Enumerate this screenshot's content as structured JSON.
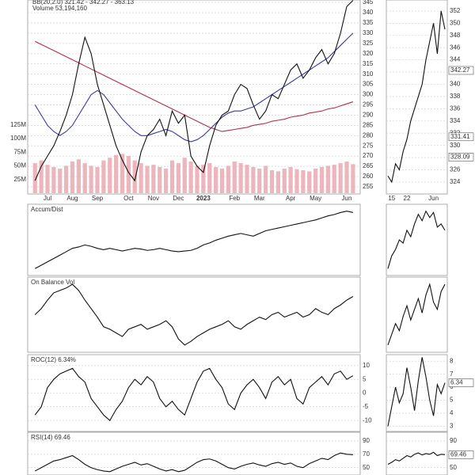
{
  "chart_data": [
    {
      "type": "line",
      "legend": [
        "BB(20,2.0) 321.42 - 342.27 - 363.13",
        "Volume 53,194,160"
      ],
      "categories": [
        null,
        null,
        "Jul",
        null,
        null,
        null,
        "Aug",
        null,
        null,
        null,
        "Sep",
        null,
        null,
        null,
        null,
        "Oct",
        null,
        null,
        null,
        "Nov",
        null,
        null,
        null,
        "Dec",
        null,
        null,
        null,
        "2023",
        null,
        null,
        null,
        null,
        "Feb",
        null,
        null,
        null,
        "Mar",
        null,
        null,
        null,
        null,
        "Apr",
        null,
        null,
        null,
        "May",
        null,
        null,
        null,
        null,
        "Jun",
        null
      ],
      "ylim": [
        251.5,
        346.2
      ],
      "yticks": [
        255,
        260,
        265,
        270,
        275,
        280,
        285,
        290,
        295,
        300,
        305,
        310,
        315,
        320,
        325,
        330,
        335,
        340,
        345
      ],
      "y2lim": [
        0,
        354000000
      ],
      "y2ticks": [
        {
          "value": 25000000,
          "label": "25M"
        },
        {
          "value": 50000000,
          "label": "50M"
        },
        {
          "value": 75000000,
          "label": "75M"
        },
        {
          "value": 100000000,
          "label": "100M"
        },
        {
          "value": 125000000,
          "label": "125M"
        }
      ],
      "series": [
        {
          "color": "#e8a3ab",
          "axis": "y2",
          "values": [
            55000000,
            60000000,
            52000000,
            48000000,
            45000000,
            50000000,
            58000000,
            62000000,
            55000000,
            50000000,
            48000000,
            60000000,
            65000000,
            70000000,
            72000000,
            68000000,
            60000000,
            55000000,
            50000000,
            52000000,
            48000000,
            45000000,
            60000000,
            55000000,
            65000000,
            58000000,
            50000000,
            52000000,
            55000000,
            48000000,
            45000000,
            50000000,
            58000000,
            55000000,
            52000000,
            48000000,
            45000000,
            50000000,
            42000000,
            40000000,
            45000000,
            48000000,
            44000000,
            42000000,
            40000000,
            45000000,
            48000000,
            50000000,
            52000000,
            55000000,
            58000000,
            53194160
          ]
        },
        {
          "color": "#b03048",
          "values": [
            326,
            324.5,
            323,
            321.5,
            320,
            318.5,
            317,
            315.5,
            314,
            312.5,
            311,
            309.5,
            308,
            306.5,
            305,
            303.5,
            302,
            300.5,
            299,
            297.5,
            296,
            294.5,
            293,
            291.5,
            290,
            288.5,
            287,
            285.5,
            284,
            283,
            282,
            282.5,
            283,
            283.5,
            284,
            285,
            285.5,
            286,
            287,
            287.5,
            288,
            289,
            289.5,
            290,
            291,
            291.5,
            292,
            293,
            293.5,
            294.5,
            295.5,
            296.5
          ]
        },
        {
          "color": "#3a3aa0",
          "values": [
            295,
            290,
            285,
            282,
            280,
            282,
            285,
            290,
            295,
            300,
            302,
            300,
            296,
            292,
            288,
            285,
            282,
            280,
            280,
            281,
            282,
            283,
            282,
            280,
            278,
            277,
            278,
            280,
            283,
            286,
            289,
            291,
            292,
            292,
            293,
            294,
            296,
            298,
            300,
            302,
            304,
            306,
            308,
            310,
            312,
            314,
            316,
            318,
            321,
            324,
            327,
            330
          ]
        },
        {
          "color": "#111111",
          "values": [
            258,
            265,
            270,
            275,
            282,
            290,
            300,
            315,
            328,
            320,
            305,
            295,
            285,
            275,
            268,
            262,
            258,
            272,
            280,
            283,
            288,
            280,
            292,
            286,
            290,
            270,
            265,
            262,
            275,
            285,
            290,
            292,
            300,
            305,
            303,
            295,
            288,
            292,
            300,
            298,
            305,
            312,
            315,
            308,
            312,
            318,
            322,
            315,
            320,
            330,
            343,
            346
          ]
        }
      ]
    },
    {
      "type": "line",
      "title": "Accum/Dist",
      "series": [
        {
          "color": "#111111",
          "values": [
            10,
            15,
            20,
            25,
            30,
            35,
            40,
            42,
            45,
            43,
            40,
            38,
            40,
            38,
            36,
            38,
            40,
            39,
            37,
            38,
            40,
            38,
            36,
            35,
            36,
            37,
            40,
            45,
            48,
            52,
            55,
            58,
            60,
            62,
            60,
            58,
            62,
            66,
            68,
            70,
            72,
            74,
            76,
            78,
            80,
            82,
            85,
            88,
            90,
            93,
            95,
            93
          ]
        }
      ]
    },
    {
      "type": "line",
      "title": "On Balance Vol",
      "series": [
        {
          "color": "#111111",
          "values": [
            50,
            55,
            62,
            68,
            70,
            72,
            75,
            70,
            62,
            55,
            48,
            40,
            38,
            35,
            32,
            38,
            40,
            42,
            38,
            40,
            42,
            45,
            40,
            30,
            25,
            28,
            32,
            35,
            38,
            40,
            42,
            45,
            40,
            38,
            42,
            45,
            48,
            46,
            50,
            52,
            48,
            50,
            52,
            48,
            50,
            55,
            52,
            50,
            55,
            58,
            62,
            65
          ]
        }
      ]
    },
    {
      "type": "line",
      "title": "ROC(12) 6.34%",
      "ylim": [
        -14,
        14
      ],
      "yticks": [
        -10,
        -5,
        0,
        5,
        10
      ],
      "series": [
        {
          "color": "#111111",
          "values": [
            -8,
            -5,
            2,
            5,
            7,
            8,
            9,
            6,
            4,
            -2,
            -5,
            -8,
            -10,
            -6,
            -3,
            2,
            5,
            3,
            6,
            4,
            -2,
            -5,
            -3,
            -6,
            -8,
            -2,
            4,
            8,
            9,
            5,
            2,
            -4,
            -6,
            0,
            3,
            5,
            2,
            -2,
            4,
            6,
            3,
            5,
            -2,
            -4,
            2,
            4,
            6,
            3,
            7,
            8,
            5,
            6.34
          ]
        }
      ]
    },
    {
      "type": "line",
      "title": "RSI(14) 69.46",
      "ylim": [
        39,
        103
      ],
      "yticks": [
        50,
        70,
        90
      ],
      "series": [
        {
          "color": "#111111",
          "values": [
            45,
            50,
            55,
            60,
            62,
            65,
            68,
            62,
            55,
            50,
            47,
            45,
            44,
            48,
            52,
            55,
            58,
            54,
            56,
            52,
            48,
            45,
            47,
            44,
            46,
            52,
            58,
            62,
            63,
            60,
            55,
            50,
            48,
            52,
            55,
            57,
            54,
            52,
            56,
            58,
            55,
            57,
            52,
            50,
            56,
            60,
            64,
            62,
            68,
            72,
            70,
            69.46
          ]
        }
      ]
    },
    {
      "type": "line",
      "categories": [
        null,
        "15",
        null,
        null,
        null,
        "22",
        null,
        null,
        null,
        null,
        null,
        null,
        "Jun",
        null,
        null,
        null
      ],
      "ylim": [
        322.05,
        353.8
      ],
      "yticks": [
        324,
        326,
        328,
        330,
        332,
        334,
        336,
        338,
        340,
        342,
        344,
        346,
        348,
        350,
        352
      ],
      "markers": [
        342.27,
        331.41,
        328.09
      ],
      "series": [
        {
          "color": "#111111",
          "values": [
            325,
            324,
            327,
            326,
            329,
            331,
            334,
            336,
            338,
            340,
            344,
            347,
            350,
            345,
            352,
            349
          ]
        }
      ]
    },
    {
      "type": "line",
      "series": [
        {
          "color": "#111111",
          "values": [
            10,
            30,
            40,
            55,
            50,
            70,
            60,
            80,
            95,
            85,
            100,
            90,
            98,
            75,
            80,
            70
          ]
        }
      ]
    },
    {
      "type": "line",
      "series": [
        {
          "color": "#111111",
          "values": [
            10,
            25,
            40,
            30,
            50,
            65,
            45,
            60,
            75,
            55,
            80,
            95,
            70,
            60,
            85,
            95
          ]
        }
      ]
    },
    {
      "type": "line",
      "ylim": [
        2.6,
        8.5
      ],
      "yticks": [
        3,
        4,
        5,
        6,
        7,
        8
      ],
      "markers": [
        6.34
      ],
      "series": [
        {
          "color": "#111111",
          "values": [
            3,
            4.5,
            6,
            4.8,
            5.5,
            7.5,
            6,
            4.2,
            6.5,
            8.3,
            6.8,
            5,
            3.8,
            6.2,
            5.5,
            6.34
          ]
        }
      ]
    },
    {
      "type": "line",
      "ylim": [
        39,
        103
      ],
      "yticks": [
        50,
        70,
        90
      ],
      "markers": [
        69.46
      ],
      "series": [
        {
          "color": "#111111",
          "values": [
            55,
            58,
            62,
            60,
            64,
            68,
            66,
            70,
            72,
            69,
            71,
            70,
            73,
            68,
            70,
            69.46
          ]
        }
      ]
    }
  ]
}
